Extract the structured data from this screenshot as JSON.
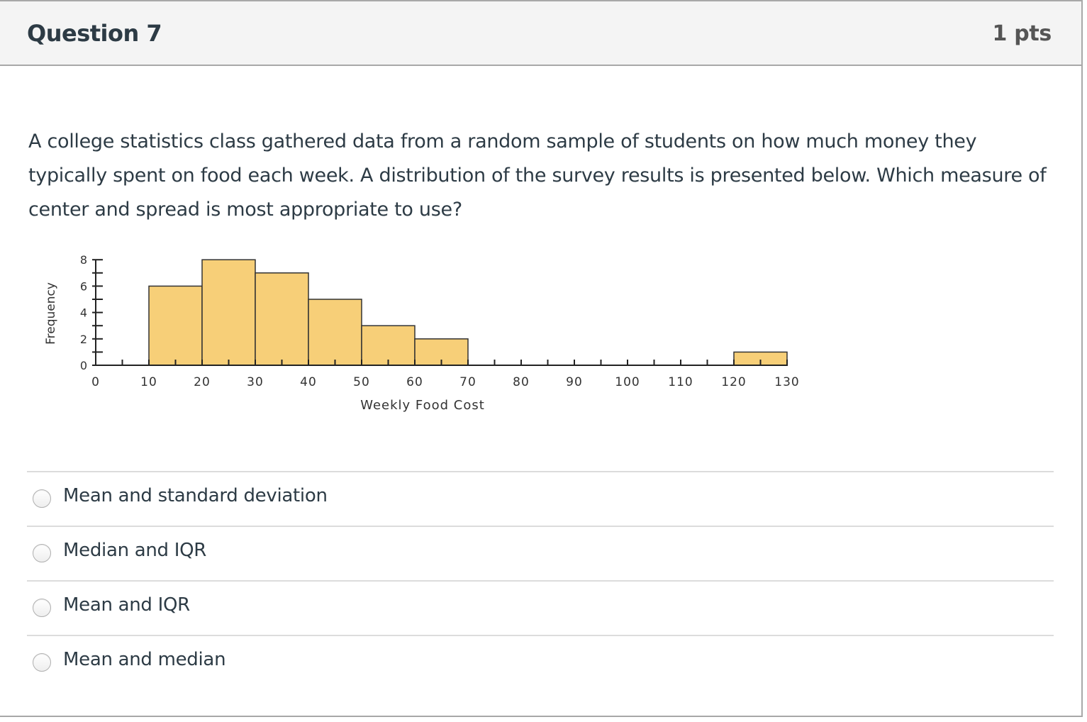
{
  "question": {
    "title": "Question 7",
    "points": "1 pts",
    "text": "A college statistics class gathered data from a random sample of students on how much money they typically spent on food each week.  A distribution of the survey results is presented below.  Which measure of center and spread is most appropriate to use?"
  },
  "answers": [
    {
      "label": "Mean and standard deviation",
      "selected": false
    },
    {
      "label": "Median and IQR",
      "selected": false
    },
    {
      "label": "Mean and IQR",
      "selected": false
    },
    {
      "label": "Mean and median",
      "selected": false
    }
  ],
  "chart_data": {
    "type": "bar",
    "subtype": "histogram",
    "title": "",
    "xlabel": "Weekly Food Cost",
    "ylabel": "Frequency",
    "bins": [
      [
        10,
        20
      ],
      [
        20,
        30
      ],
      [
        30,
        40
      ],
      [
        40,
        50
      ],
      [
        50,
        60
      ],
      [
        60,
        70
      ],
      [
        120,
        130
      ]
    ],
    "categories": [
      "10-20",
      "20-30",
      "30-40",
      "40-50",
      "50-60",
      "60-70",
      "120-130"
    ],
    "values": [
      6,
      8,
      7,
      5,
      3,
      2,
      1
    ],
    "xlim": [
      0,
      130
    ],
    "ylim": [
      0,
      8
    ],
    "xticks": [
      "0",
      "10",
      "20",
      "30",
      "40",
      "50",
      "60",
      "70",
      "80",
      "90",
      "100",
      "110",
      "120",
      "130"
    ],
    "yticks": [
      "0",
      "2",
      "4",
      "6",
      "8"
    ],
    "grid": false,
    "bar_color": "#F7CF78",
    "edge_color": "#333333"
  }
}
